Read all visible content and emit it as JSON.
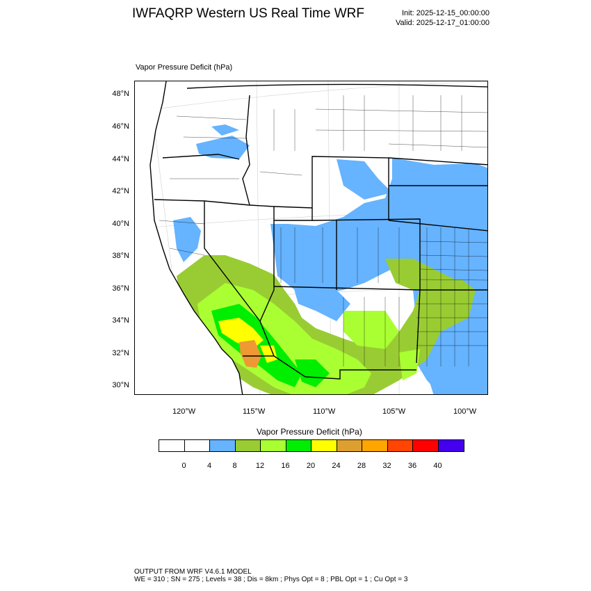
{
  "header": {
    "title": "IWFAQRP Western US Real Time WRF",
    "init": "Init: 2025-12-15_00:00:00",
    "valid": "Valid: 2025-12-17_01:00:00"
  },
  "map": {
    "field_label": "Vapor Pressure Deficit   (hPa)",
    "lat_labels": [
      "48°N",
      "46°N",
      "44°N",
      "42°N",
      "40°N",
      "38°N",
      "36°N",
      "34°N",
      "32°N",
      "30°N"
    ],
    "lon_labels": [
      "120°W",
      "115°W",
      "110°W",
      "105°W",
      "100°W"
    ],
    "colors": {
      "blue": "#66b3ff",
      "olive_green": "#99cc33",
      "yellow_green": "#aaff33",
      "green": "#00ee00",
      "yellow": "#ffff00",
      "orange": "#ee9933",
      "border": "#000000",
      "gridline": "#cccccc"
    }
  },
  "colorbar": {
    "title": "Vapor Pressure Deficit  (hPa)",
    "ticks": [
      "0",
      "4",
      "8",
      "12",
      "16",
      "20",
      "24",
      "28",
      "32",
      "36",
      "40"
    ],
    "colors": [
      "#ffffff",
      "#ffffff",
      "#66b3ff",
      "#99cc33",
      "#aaff33",
      "#00ee00",
      "#ffff00",
      "#dda030",
      "#ffa500",
      "#ff4500",
      "#ff0000",
      "#4400ee"
    ]
  },
  "footer": {
    "line1": "OUTPUT FROM WRF V4.6.1 MODEL",
    "line2": "WE = 310 ; SN = 275 ; Levels = 38 ; Dis = 8km ; Phys Opt = 8 ; PBL Opt = 1 ; Cu Opt = 3"
  }
}
